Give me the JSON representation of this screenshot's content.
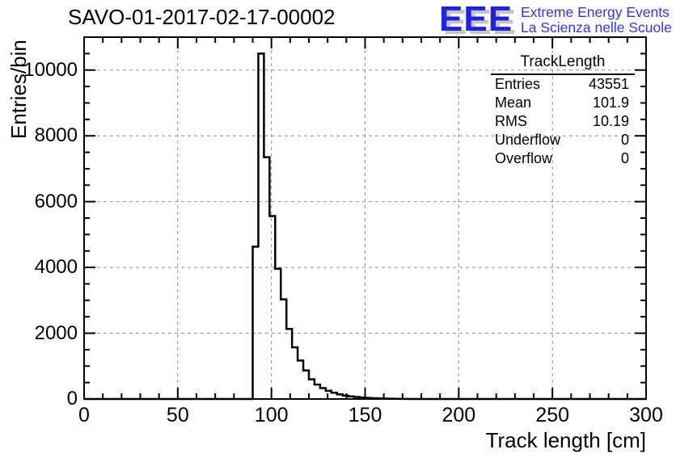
{
  "title": "SAVO-01-2017-02-17-00002",
  "logo": {
    "letters": "EEE",
    "line1": "Extreme Energy Events",
    "line2": "La Scienza nelle Scuole",
    "letter_color": "#2121DF",
    "shadow_color": "#C6C6C6",
    "text_color": "#3333FF"
  },
  "stats": {
    "title": "TrackLength",
    "rows": [
      {
        "label": "Entries",
        "value": "43551"
      },
      {
        "label": "Mean",
        "value": "101.9"
      },
      {
        "label": "RMS",
        "value": "10.19"
      },
      {
        "label": "Underflow",
        "value": "0"
      },
      {
        "label": "Overflow",
        "value": "0"
      }
    ]
  },
  "chart_data": {
    "type": "bar",
    "title": "SAVO-01-2017-02-17-00002",
    "xlabel": "Track length [cm]",
    "ylabel": "Entries/bin",
    "xlim": [
      0,
      300
    ],
    "ylim": [
      0,
      11000
    ],
    "x_major_ticks": [
      0,
      50,
      100,
      150,
      200,
      250,
      300
    ],
    "x_minor_step": 10,
    "y_major_ticks": [
      0,
      2000,
      4000,
      6000,
      8000,
      10000
    ],
    "y_minor_step": 500,
    "grid": true,
    "grid_color": "#8e8e8e",
    "line_color": "#000000",
    "bin_start": 90,
    "bin_width": 3,
    "bin_counts": [
      4630,
      10500,
      7350,
      5560,
      3960,
      3030,
      2130,
      1570,
      1170,
      870,
      600,
      440,
      330,
      250,
      190,
      140,
      105,
      80,
      60,
      45,
      35,
      25,
      18,
      12,
      8,
      5,
      3,
      2
    ]
  }
}
